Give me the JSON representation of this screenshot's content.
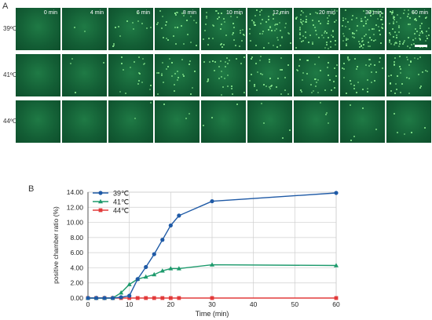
{
  "panel_labels": {
    "a": "A",
    "b": "B"
  },
  "micrograph_grid": {
    "time_labels": [
      "0 min",
      "4 min",
      "6 min",
      "8 min",
      "10 min",
      "12 min",
      "20 min",
      "30 min",
      "60 min"
    ],
    "rows": [
      {
        "temp": "39ºC",
        "density": [
          0,
          2,
          14,
          30,
          42,
          52,
          70,
          80,
          86
        ]
      },
      {
        "temp": "41ºC",
        "density": [
          0,
          4,
          18,
          26,
          30,
          32,
          34,
          35,
          36
        ]
      },
      {
        "temp": "44ºC",
        "density": [
          0,
          0,
          2,
          3,
          3,
          4,
          4,
          5,
          5
        ]
      }
    ],
    "tile_color": "#176b3c",
    "dot_color": "#9dff9d"
  },
  "chart_data": {
    "type": "line",
    "xlabel": "Time (min)",
    "ylabel": "positive chamber ratio (%)",
    "xlim": [
      0,
      60
    ],
    "ylim": [
      0,
      14
    ],
    "xticks": [
      0,
      10,
      20,
      30,
      40,
      50,
      60
    ],
    "yticks": [
      "0.00",
      "2.00",
      "4.00",
      "6.00",
      "8.00",
      "10.00",
      "12.00",
      "14.00"
    ],
    "grid": true,
    "legend_position": "top-left",
    "series": [
      {
        "name": "39℃",
        "color": "#1f5aa6",
        "marker": "circle",
        "x": [
          0,
          2,
          4,
          6,
          8,
          10,
          12,
          14,
          16,
          18,
          20,
          22,
          30,
          60
        ],
        "y": [
          0,
          0,
          0,
          0,
          0.1,
          0.3,
          2.5,
          4.1,
          5.8,
          7.7,
          9.6,
          10.9,
          12.8,
          13.9
        ]
      },
      {
        "name": "41℃",
        "color": "#1d9a6c",
        "marker": "triangle",
        "x": [
          0,
          2,
          4,
          6,
          8,
          10,
          12,
          14,
          16,
          18,
          20,
          22,
          30,
          60
        ],
        "y": [
          0,
          0,
          0,
          0,
          0.7,
          1.8,
          2.5,
          2.8,
          3.1,
          3.6,
          3.9,
          3.9,
          4.4,
          4.3
        ]
      },
      {
        "name": "44℃",
        "color": "#e23b3b",
        "marker": "square",
        "x": [
          0,
          2,
          4,
          6,
          8,
          10,
          12,
          14,
          16,
          18,
          20,
          22,
          30,
          60
        ],
        "y": [
          0,
          0,
          0,
          0,
          0,
          0,
          0,
          0,
          0,
          0,
          0,
          0,
          0,
          0
        ]
      }
    ]
  }
}
